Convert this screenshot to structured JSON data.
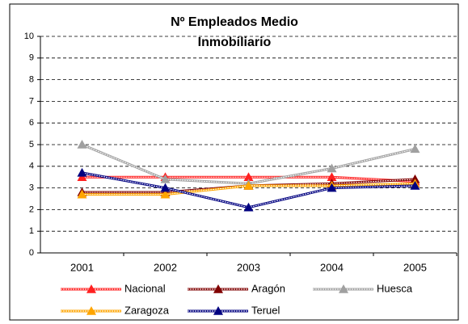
{
  "chart_data": {
    "type": "line",
    "title": [
      "Nº Empleados Medio",
      "Inmobiliario"
    ],
    "categories": [
      "2001",
      "2002",
      "2003",
      "2004",
      "2005"
    ],
    "series": [
      {
        "name": "Nacional",
        "color": "#ff2020",
        "values": [
          3.5,
          3.5,
          3.5,
          3.5,
          3.3
        ]
      },
      {
        "name": "Aragón",
        "color": "#800000",
        "values": [
          2.8,
          2.8,
          3.1,
          3.2,
          3.4
        ]
      },
      {
        "name": "Huesca",
        "color": "#a0a0a0",
        "values": [
          5.0,
          3.4,
          3.2,
          3.9,
          4.8
        ]
      },
      {
        "name": "Zaragoza",
        "color": "#ffa500",
        "values": [
          2.7,
          2.7,
          3.1,
          3.1,
          3.2
        ]
      },
      {
        "name": "Teruel",
        "color": "#000080",
        "values": [
          3.7,
          3.0,
          2.1,
          3.0,
          3.1
        ]
      }
    ],
    "ylim": [
      0,
      10
    ],
    "yticks": [
      0,
      1,
      2,
      3,
      4,
      5,
      6,
      7,
      8,
      9,
      10
    ],
    "grid": true,
    "legend": "bottom"
  }
}
